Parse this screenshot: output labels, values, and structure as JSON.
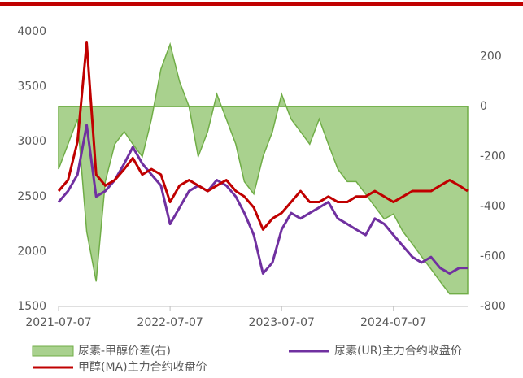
{
  "chart_data": {
    "type": "combo",
    "x": [
      "2021-07-07",
      "2021-08-07",
      "2021-09-07",
      "2021-10-07",
      "2021-11-07",
      "2021-12-07",
      "2022-01-07",
      "2022-02-07",
      "2022-03-07",
      "2022-04-07",
      "2022-05-07",
      "2022-06-07",
      "2022-07-07",
      "2022-08-07",
      "2022-09-07",
      "2022-10-07",
      "2022-11-07",
      "2022-12-07",
      "2023-01-07",
      "2023-02-07",
      "2023-03-07",
      "2023-04-07",
      "2023-05-07",
      "2023-06-07",
      "2023-07-07",
      "2023-08-07",
      "2023-09-07",
      "2023-10-07",
      "2023-11-07",
      "2023-12-07",
      "2024-01-07",
      "2024-02-07",
      "2024-03-07",
      "2024-04-07",
      "2024-05-07",
      "2024-06-07",
      "2024-07-07",
      "2024-08-07",
      "2024-09-07",
      "2024-10-07",
      "2024-11-07",
      "2024-12-07",
      "2025-01-07",
      "2025-02-07",
      "2025-03-07"
    ],
    "series": [
      {
        "name": "尿素-甲醇价差(右)",
        "type": "area",
        "axis": "y2",
        "color": "#a9d18e",
        "edge_color": "#70ad47",
        "values": [
          -250,
          -150,
          -50,
          -500,
          -700,
          -300,
          -150,
          -100,
          -150,
          -200,
          -50,
          150,
          250,
          100,
          0,
          -200,
          -100,
          50,
          -50,
          -150,
          -300,
          -350,
          -200,
          -100,
          50,
          -50,
          -100,
          -150,
          -50,
          -150,
          -250,
          -300,
          -300,
          -350,
          -400,
          -450,
          -430,
          -500,
          -550,
          -600,
          -650,
          -700,
          -750,
          -750,
          -750
        ]
      },
      {
        "name": "尿素(UR)主力合约收盘价",
        "type": "line",
        "color": "#7030a0",
        "values": [
          2450,
          2550,
          2700,
          3150,
          2500,
          2550,
          2650,
          2800,
          2950,
          2800,
          2700,
          2600,
          2250,
          2400,
          2550,
          2600,
          2550,
          2650,
          2600,
          2500,
          2350,
          2150,
          1800,
          1900,
          2200,
          2350,
          2300,
          2350,
          2400,
          2450,
          2300,
          2250,
          2200,
          2150,
          2300,
          2250,
          2150,
          2050,
          1950,
          1900,
          1950,
          1850,
          1800,
          1850,
          1850
        ]
      },
      {
        "name": "甲醇(MA)主力合约收盘价",
        "type": "line",
        "color": "#c00000",
        "values": [
          2550,
          2650,
          3000,
          3900,
          2700,
          2600,
          2650,
          2750,
          2850,
          2700,
          2750,
          2700,
          2450,
          2600,
          2650,
          2600,
          2550,
          2600,
          2650,
          2550,
          2500,
          2400,
          2200,
          2300,
          2350,
          2450,
          2550,
          2450,
          2450,
          2500,
          2450,
          2450,
          2500,
          2500,
          2550,
          2500,
          2450,
          2500,
          2550,
          2550,
          2550,
          2600,
          2650,
          2600,
          2550
        ]
      }
    ],
    "xlim": [
      "2021-07-07",
      "2025-03-07"
    ],
    "xticks": [
      "2021-07-07",
      "2022-07-07",
      "2023-07-07",
      "2024-07-07"
    ],
    "ylim": [
      1500,
      4000
    ],
    "yticks": [
      1500,
      2000,
      2500,
      3000,
      3500,
      4000
    ],
    "y2lim": [
      -800,
      300
    ],
    "y2ticks": [
      -800,
      -600,
      -400,
      -200,
      0,
      200
    ]
  }
}
